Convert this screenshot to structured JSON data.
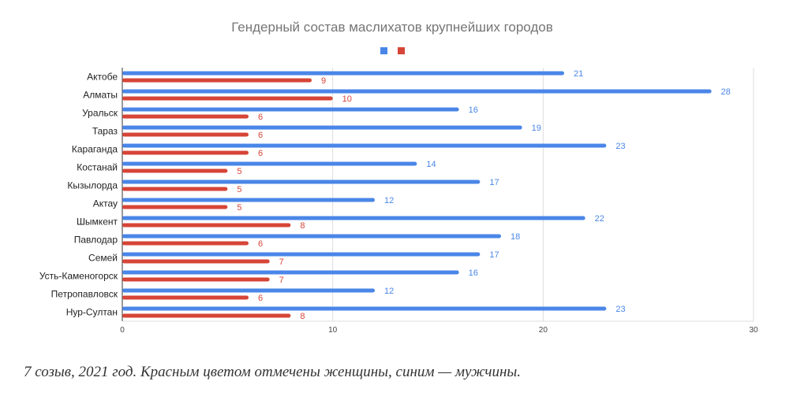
{
  "chart_data": {
    "type": "bar",
    "orientation": "horizontal",
    "title": "Гендерный состав маслихатов крупнейших городов",
    "categories": [
      "Актобе",
      "Алматы",
      "Уральск",
      "Тараз",
      "Караганда",
      "Костанай",
      "Кызылорда",
      "Актау",
      "Шымкент",
      "Павлодар",
      "Семей",
      "Усть-Каменогорск",
      "Петропавловск",
      "Нур-Султан"
    ],
    "series": [
      {
        "color": "#4a86e8",
        "values": [
          21,
          28,
          16,
          19,
          23,
          14,
          17,
          12,
          22,
          18,
          17,
          16,
          12,
          23
        ]
      },
      {
        "color": "#d64537",
        "values": [
          9,
          10,
          6,
          6,
          6,
          5,
          5,
          5,
          8,
          6,
          7,
          7,
          6,
          8
        ]
      }
    ],
    "xlim": [
      0,
      30
    ],
    "xticks": [
      0,
      10,
      20,
      30
    ],
    "grid": true,
    "legend": "top",
    "data_labels": true
  },
  "caption": "7 созыв, 2021 год. Красным цветом отмечены женщины, синим — мужчины."
}
